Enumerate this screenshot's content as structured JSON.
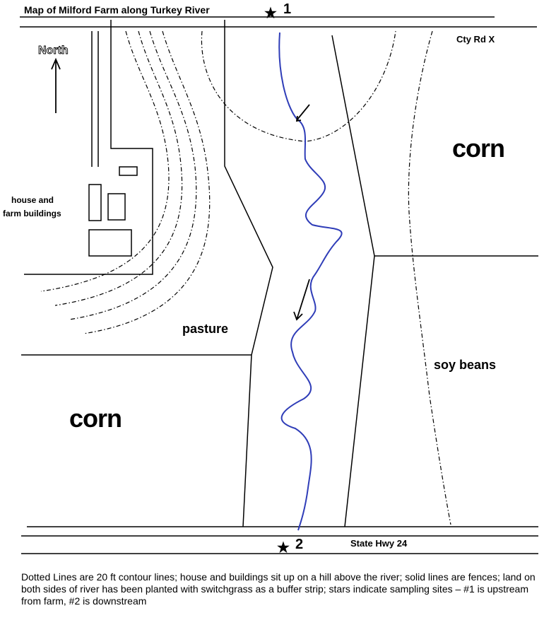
{
  "map": {
    "title": "Map of Milford Farm along Turkey River",
    "compass_label": "North",
    "road_top": "Cty Rd X",
    "road_bottom": "State Hwy 24",
    "fields": {
      "corn_east": "corn",
      "corn_west": "corn",
      "soy": "soy beans",
      "pasture": "pasture",
      "house_line1": "house and",
      "house_line2": "farm buildings"
    },
    "sites": {
      "site1_label": "1",
      "site2_label": "2",
      "star_glyph": "★"
    },
    "colors": {
      "river": "#2f3db8",
      "lines": "#000000"
    }
  },
  "caption": "Dotted Lines are 20 ft contour lines; house and buildings sit up on a hill above the river; solid lines are fences; land on both sides of river has been planted with switchgrass as a buffer strip; stars indicate sampling sites – #1 is upstream from farm, #2 is downstream"
}
